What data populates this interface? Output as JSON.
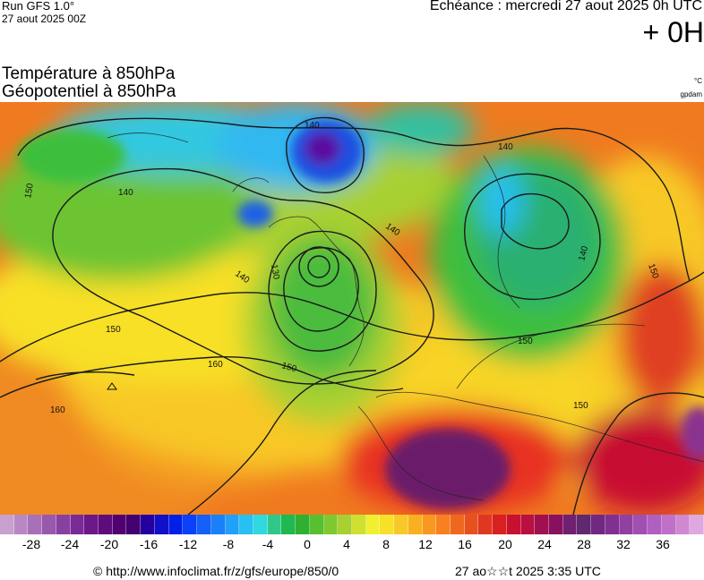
{
  "header": {
    "run_label": "Run GFS 1.0°",
    "run_date": "27 aout 2025 00Z",
    "echeance": "Echéance : mercredi 27 aout 2025 0h UTC",
    "lead_time": "+ 0H",
    "title_line1": "Température à 850hPa",
    "title_line2": "Géopotentiel à 850hPa",
    "unit_temperature": "°C",
    "unit_geopotential": "gpdam"
  },
  "map": {
    "contour_labels": [
      "150",
      "140",
      "140",
      "130",
      "140",
      "140",
      "150",
      "150",
      "140",
      "140",
      "150",
      "160",
      "160",
      "150",
      "150"
    ],
    "temperature_colors": {
      "cold_core": "#7a0a8a",
      "blue": "#2a6ef0",
      "cyan": "#2cc6f0",
      "green": "#3cbf3c",
      "light_green": "#9bd43a",
      "yellow": "#f4e52a",
      "orange": "#f6a21e",
      "orange_red": "#f07020",
      "red": "#e8362a",
      "dark_purple": "#6a1a6a"
    }
  },
  "legend": {
    "colors": [
      "#c8a0d0",
      "#b888c4",
      "#a870b8",
      "#9858ac",
      "#8840a0",
      "#7a2a94",
      "#6c1888",
      "#5e0c7c",
      "#500070",
      "#420070",
      "#2400a0",
      "#1010c8",
      "#0020e8",
      "#0a40f8",
      "#1460f8",
      "#1a80f8",
      "#20a0f8",
      "#28c0f0",
      "#30d8e0",
      "#30c888",
      "#20b850",
      "#30b030",
      "#58c030",
      "#80c830",
      "#a8d030",
      "#d0e030",
      "#f0f030",
      "#f8e028",
      "#f8c828",
      "#f8b020",
      "#f89820",
      "#f88020",
      "#f06820",
      "#e85020",
      "#e03820",
      "#d82020",
      "#c81030",
      "#b81040",
      "#a01050",
      "#881060",
      "#702070",
      "#602870",
      "#702880",
      "#803090",
      "#9040a0",
      "#a050b0",
      "#b060c0",
      "#c070c8",
      "#d088d0",
      "#e0a8e0"
    ],
    "ticks": [
      "-28",
      "-24",
      "-20",
      "-16",
      "-12",
      "-8",
      "-4",
      "0",
      "4",
      "8",
      "12",
      "16",
      "20",
      "24",
      "28",
      "32",
      "36"
    ]
  },
  "footer": {
    "url": "© http://www.infoclimat.fr/z/gfs/europe/850/0",
    "timestamp": "27 ao☆☆t 2025  3:35 UTC"
  }
}
